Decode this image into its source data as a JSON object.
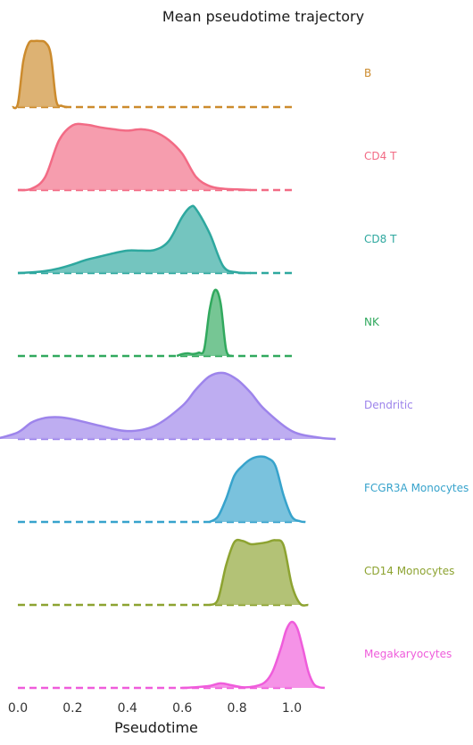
{
  "chart_data": {
    "type": "area",
    "subtype": "ridgeline",
    "title": "Mean pseudotime trajectory",
    "xlabel": "Pseudotime",
    "ylabel": "",
    "xlim": [
      -0.06,
      1.16
    ],
    "x_ticks": [
      0.0,
      0.2,
      0.4,
      0.6,
      0.8,
      1.0
    ],
    "x_tick_labels": [
      "0.0",
      "0.2",
      "0.4",
      "0.6",
      "0.8",
      "1.0"
    ],
    "grid": false,
    "legend": "none",
    "baseline_style": "dashed",
    "baseline_span": [
      0.0,
      1.0
    ],
    "density_scale": "relative (each ridge normalized to its own peak)",
    "series": [
      {
        "name": "B",
        "color": "#cc8b2d",
        "x": [
          -0.02,
          0.0,
          0.02,
          0.04,
          0.06,
          0.08,
          0.1,
          0.12,
          0.14,
          0.16,
          0.18
        ],
        "density": [
          0.0,
          0.05,
          0.7,
          0.97,
          1.0,
          1.0,
          0.98,
          0.8,
          0.1,
          0.02,
          0.0
        ]
      },
      {
        "name": "CD4 T",
        "color": "#f26b85",
        "x": [
          0.0,
          0.05,
          0.1,
          0.15,
          0.2,
          0.25,
          0.3,
          0.35,
          0.4,
          0.45,
          0.5,
          0.55,
          0.6,
          0.65,
          0.7,
          0.75,
          0.8,
          0.85
        ],
        "density": [
          0.0,
          0.02,
          0.2,
          0.75,
          0.98,
          0.99,
          0.95,
          0.92,
          0.9,
          0.92,
          0.88,
          0.76,
          0.55,
          0.2,
          0.06,
          0.02,
          0.01,
          0.0
        ]
      },
      {
        "name": "CD8 T",
        "color": "#2ea89f",
        "x": [
          0.0,
          0.05,
          0.1,
          0.15,
          0.2,
          0.25,
          0.3,
          0.35,
          0.4,
          0.45,
          0.5,
          0.55,
          0.6,
          0.63,
          0.65,
          0.7,
          0.75,
          0.8,
          0.85
        ],
        "density": [
          0.0,
          0.01,
          0.03,
          0.07,
          0.13,
          0.2,
          0.25,
          0.3,
          0.34,
          0.34,
          0.35,
          0.48,
          0.85,
          1.0,
          0.97,
          0.6,
          0.1,
          0.01,
          0.0
        ]
      },
      {
        "name": "NK",
        "color": "#31a95e",
        "x": [
          0.58,
          0.6,
          0.62,
          0.64,
          0.66,
          0.68,
          0.7,
          0.72,
          0.74,
          0.76,
          0.78
        ],
        "density": [
          0.0,
          0.03,
          0.04,
          0.03,
          0.05,
          0.1,
          0.7,
          1.0,
          0.8,
          0.1,
          0.0
        ]
      },
      {
        "name": "Dendritic",
        "color": "#9d84eb",
        "x": [
          -0.08,
          0.0,
          0.05,
          0.1,
          0.15,
          0.2,
          0.3,
          0.4,
          0.5,
          0.6,
          0.65,
          0.7,
          0.75,
          0.8,
          0.85,
          0.9,
          1.0,
          1.1,
          1.16
        ],
        "density": [
          0.0,
          0.1,
          0.25,
          0.32,
          0.33,
          0.3,
          0.2,
          0.12,
          0.2,
          0.5,
          0.75,
          0.95,
          1.0,
          0.9,
          0.7,
          0.45,
          0.12,
          0.02,
          0.0
        ]
      },
      {
        "name": "FCGR3A Monocytes",
        "color": "#37a3cc",
        "x": [
          0.7,
          0.73,
          0.76,
          0.79,
          0.82,
          0.85,
          0.88,
          0.91,
          0.94,
          0.97,
          1.0,
          1.03,
          1.05
        ],
        "density": [
          0.0,
          0.08,
          0.35,
          0.7,
          0.85,
          0.95,
          0.99,
          0.97,
          0.85,
          0.4,
          0.08,
          0.01,
          0.0
        ]
      },
      {
        "name": "CD14 Monocytes",
        "color": "#8da331",
        "x": [
          0.7,
          0.73,
          0.76,
          0.79,
          0.82,
          0.85,
          0.88,
          0.91,
          0.94,
          0.97,
          1.0,
          1.03,
          1.06
        ],
        "density": [
          0.0,
          0.08,
          0.6,
          0.95,
          0.97,
          0.92,
          0.93,
          0.95,
          0.98,
          0.9,
          0.3,
          0.02,
          0.0
        ]
      },
      {
        "name": "Megakaryocytes",
        "color": "#ef5cdb",
        "x": [
          0.6,
          0.65,
          0.7,
          0.74,
          0.78,
          0.82,
          0.86,
          0.9,
          0.93,
          0.96,
          0.98,
          1.0,
          1.02,
          1.04,
          1.06,
          1.08,
          1.1,
          1.12
        ],
        "density": [
          0.0,
          0.01,
          0.03,
          0.07,
          0.04,
          0.01,
          0.02,
          0.08,
          0.25,
          0.6,
          0.88,
          1.0,
          0.9,
          0.6,
          0.25,
          0.06,
          0.01,
          0.0
        ]
      }
    ]
  }
}
